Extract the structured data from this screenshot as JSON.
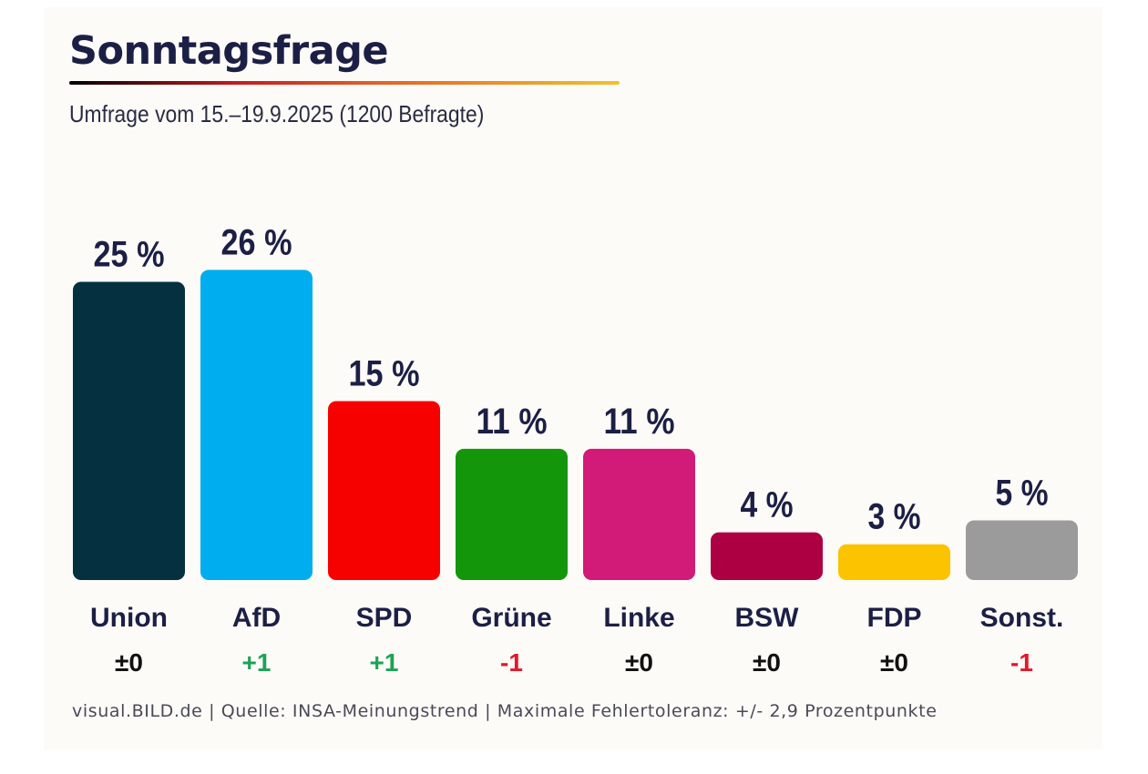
{
  "header": {
    "title": "Sonntagsfrage",
    "subtitle": "Umfrage vom 15.–19.9.2025 (1200 Befragte)"
  },
  "footer": {
    "text": "visual.BILD.de | Quelle: INSA-Meinungstrend | Maximale Fehlertoleranz: +/- 2,9 Prozentpunkte"
  },
  "colors": {
    "text": "#1c1f45",
    "positive": "#1aa356",
    "negative": "#e3172a",
    "neutral": "#111111",
    "background": "#fdfbf7"
  },
  "chart_data": {
    "type": "bar",
    "title": "Sonntagsfrage",
    "subtitle": "Umfrage vom 15.–19.9.2025 (1200 Befragte)",
    "xlabel": "",
    "ylabel": "",
    "ylim": [
      0,
      26
    ],
    "grid": false,
    "legend": "none",
    "value_suffix": " %",
    "categories": [
      "Union",
      "AfD",
      "SPD",
      "Grüne",
      "Linke",
      "BSW",
      "FDP",
      "Sonst."
    ],
    "values": [
      25,
      26,
      15,
      11,
      11,
      4,
      3,
      5
    ],
    "value_labels": [
      "25 %",
      "26 %",
      "15 %",
      "11 %",
      "11 %",
      "4 %",
      "3 %",
      "5 %"
    ],
    "changes": [
      "±0",
      "+1",
      "+1",
      "-1",
      "±0",
      "±0",
      "±0",
      "-1"
    ],
    "change_types": [
      "neutral",
      "positive",
      "positive",
      "negative",
      "neutral",
      "neutral",
      "neutral",
      "negative"
    ],
    "bar_colors": [
      "#04303f",
      "#00aeef",
      "#f70000",
      "#14960a",
      "#d21a78",
      "#ad0042",
      "#fbc300",
      "#9b9b9b"
    ]
  }
}
